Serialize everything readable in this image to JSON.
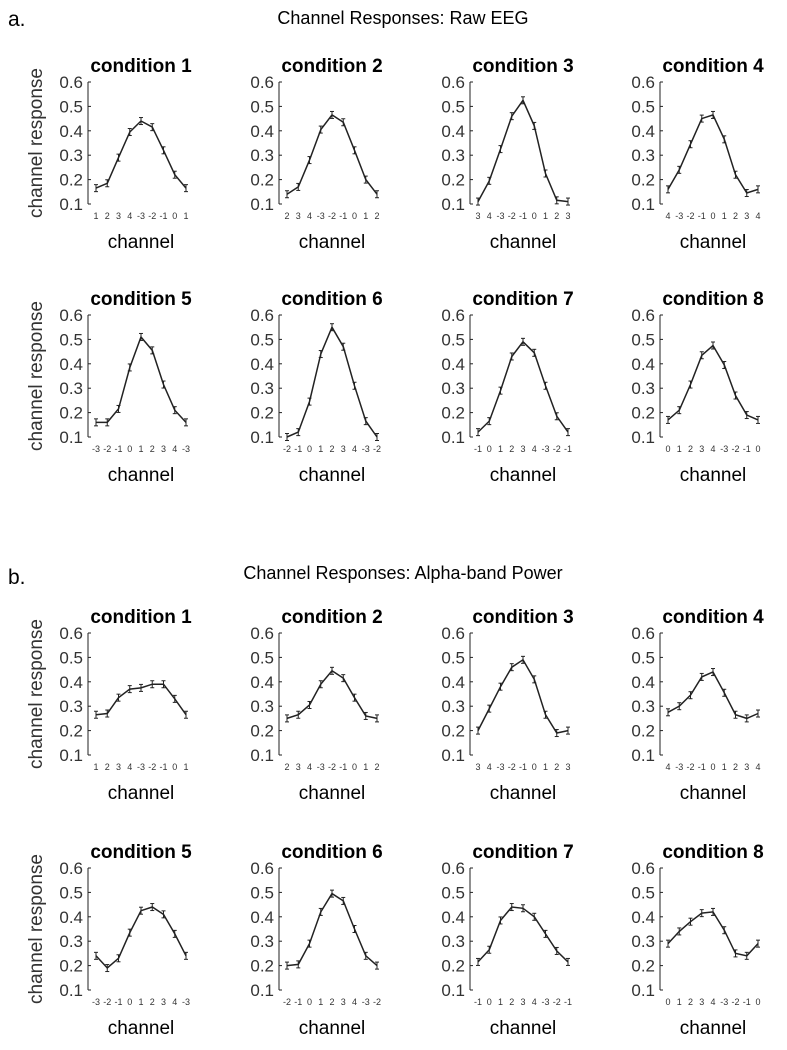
{
  "panels": [
    {
      "letter": "a.",
      "title": "Channel Responses: Raw EEG"
    },
    {
      "letter": "b.",
      "title": "Channel Responses: Alpha-band Power"
    }
  ],
  "chart_data": [
    {
      "type": "line",
      "title": "Channel Responses: Raw EEG",
      "ylabel": "channel response",
      "xlabel": "channel",
      "ylim": [
        0.1,
        0.6
      ],
      "yticks": [
        0.1,
        0.2,
        0.3,
        0.4,
        0.5,
        0.6
      ],
      "error_bars": true,
      "subplots": [
        {
          "title": "condition 1",
          "x": [
            "1",
            "2",
            "3",
            "4",
            "-3",
            "-2",
            "-1",
            "0",
            "1"
          ],
          "values": [
            0.165,
            0.185,
            0.29,
            0.395,
            0.44,
            0.415,
            0.32,
            0.22,
            0.165
          ]
        },
        {
          "title": "condition 2",
          "x": [
            "2",
            "3",
            "4",
            "-3",
            "-2",
            "-1",
            "0",
            "1",
            "2"
          ],
          "values": [
            0.14,
            0.17,
            0.28,
            0.405,
            0.465,
            0.435,
            0.32,
            0.2,
            0.14
          ]
        },
        {
          "title": "condition 3",
          "x": [
            "3",
            "4",
            "-3",
            "-2",
            "-1",
            "0",
            "1",
            "2",
            "3"
          ],
          "values": [
            0.11,
            0.195,
            0.325,
            0.46,
            0.525,
            0.42,
            0.225,
            0.115,
            0.11
          ]
        },
        {
          "title": "condition 4",
          "x": [
            "4",
            "-3",
            "-2",
            "-1",
            "0",
            "1",
            "2",
            "3",
            "4"
          ],
          "values": [
            0.16,
            0.24,
            0.345,
            0.45,
            0.465,
            0.365,
            0.22,
            0.145,
            0.16
          ]
        },
        {
          "title": "condition 5",
          "x": [
            "-3",
            "-2",
            "-1",
            "0",
            "1",
            "2",
            "3",
            "4",
            "-3"
          ],
          "values": [
            0.16,
            0.16,
            0.215,
            0.385,
            0.51,
            0.455,
            0.315,
            0.21,
            0.16
          ]
        },
        {
          "title": "condition 6",
          "x": [
            "-2",
            "-1",
            "0",
            "1",
            "2",
            "3",
            "4",
            "-3",
            "-2"
          ],
          "values": [
            0.1,
            0.12,
            0.245,
            0.44,
            0.55,
            0.47,
            0.31,
            0.165,
            0.1
          ]
        },
        {
          "title": "condition 7",
          "x": [
            "-1",
            "0",
            "1",
            "2",
            "3",
            "4",
            "-3",
            "-2",
            "-1"
          ],
          "values": [
            0.12,
            0.165,
            0.29,
            0.43,
            0.49,
            0.445,
            0.31,
            0.185,
            0.12
          ]
        },
        {
          "title": "condition 8",
          "x": [
            "0",
            "1",
            "2",
            "3",
            "4",
            "-3",
            "-2",
            "-1",
            "0"
          ],
          "values": [
            0.17,
            0.21,
            0.315,
            0.435,
            0.475,
            0.395,
            0.27,
            0.19,
            0.17
          ]
        }
      ]
    },
    {
      "type": "line",
      "title": "Channel Responses: Alpha-band Power",
      "ylabel": "channel response",
      "xlabel": "channel",
      "ylim": [
        0.1,
        0.6
      ],
      "yticks": [
        0.1,
        0.2,
        0.3,
        0.4,
        0.5,
        0.6
      ],
      "error_bars": true,
      "subplots": [
        {
          "title": "condition 1",
          "x": [
            "1",
            "2",
            "3",
            "4",
            "-3",
            "-2",
            "-1",
            "0",
            "1"
          ],
          "values": [
            0.265,
            0.27,
            0.335,
            0.37,
            0.375,
            0.39,
            0.39,
            0.33,
            0.265
          ]
        },
        {
          "title": "condition 2",
          "x": [
            "2",
            "3",
            "4",
            "-3",
            "-2",
            "-1",
            "0",
            "1",
            "2"
          ],
          "values": [
            0.25,
            0.265,
            0.305,
            0.39,
            0.445,
            0.415,
            0.335,
            0.26,
            0.25
          ]
        },
        {
          "title": "condition 3",
          "x": [
            "3",
            "4",
            "-3",
            "-2",
            "-1",
            "0",
            "1",
            "2",
            "3"
          ],
          "values": [
            0.2,
            0.29,
            0.38,
            0.46,
            0.49,
            0.41,
            0.265,
            0.19,
            0.2
          ]
        },
        {
          "title": "condition 4",
          "x": [
            "4",
            "-3",
            "-2",
            "-1",
            "0",
            "1",
            "2",
            "3",
            "4"
          ],
          "values": [
            0.275,
            0.3,
            0.345,
            0.42,
            0.44,
            0.355,
            0.265,
            0.25,
            0.27
          ]
        },
        {
          "title": "condition 5",
          "x": [
            "-3",
            "-2",
            "-1",
            "0",
            "1",
            "2",
            "3",
            "4",
            "-3"
          ],
          "values": [
            0.24,
            0.19,
            0.23,
            0.335,
            0.425,
            0.44,
            0.41,
            0.33,
            0.24
          ]
        },
        {
          "title": "condition 6",
          "x": [
            "-2",
            "-1",
            "0",
            "1",
            "2",
            "3",
            "4",
            "-3",
            "-2"
          ],
          "values": [
            0.2,
            0.205,
            0.29,
            0.42,
            0.495,
            0.465,
            0.35,
            0.24,
            0.2
          ]
        },
        {
          "title": "condition 7",
          "x": [
            "-1",
            "0",
            "1",
            "2",
            "3",
            "4",
            "-3",
            "-2",
            "-1"
          ],
          "values": [
            0.215,
            0.265,
            0.385,
            0.44,
            0.435,
            0.4,
            0.33,
            0.26,
            0.215
          ]
        },
        {
          "title": "condition 8",
          "x": [
            "0",
            "1",
            "2",
            "3",
            "4",
            "-3",
            "-2",
            "-1",
            "0"
          ],
          "values": [
            0.29,
            0.34,
            0.38,
            0.415,
            0.42,
            0.345,
            0.25,
            0.24,
            0.29
          ]
        }
      ]
    }
  ]
}
